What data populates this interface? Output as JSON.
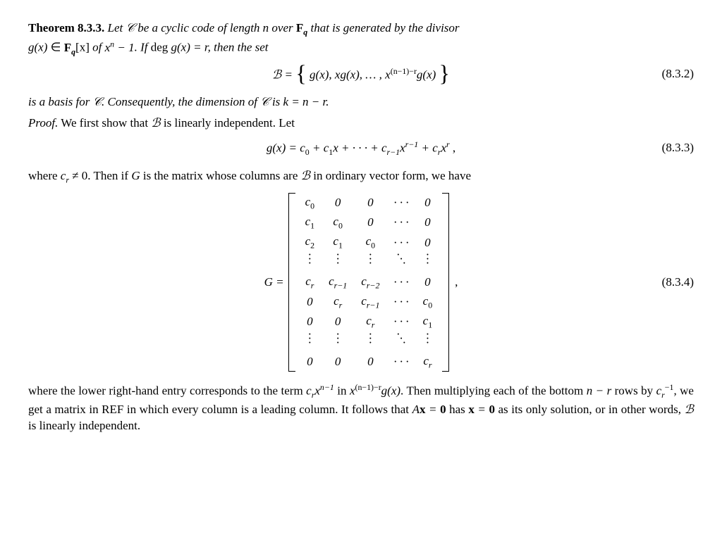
{
  "theorem": {
    "label": "Theorem 8.3.3.",
    "text_1a": "Let ",
    "C": "𝒞",
    "text_1b": " be a cyclic code of length ",
    "n": "n",
    "text_1c": " over ",
    "Fq": "F",
    "q": "q",
    "text_1d": " that is generated by the divisor ",
    "gx": "g(x)",
    "text_2a": " ∈ ",
    "Fqx": "F",
    "text_2b": "[x]",
    "text_2c": " of ",
    "xn1": "xⁿ − 1",
    "text_2d": ".  If ",
    "deg": "deg ",
    "text_2e": " = r,  then the set"
  },
  "eq1": {
    "lhs": "ℬ = ",
    "set_open": "{",
    "t1": "g(x), xg(x), … , x",
    "exp": "(n−1)−r",
    "t2": "g(x)",
    "set_close": "}",
    "num": "(8.3.2)"
  },
  "line_basis": {
    "a": "is a basis for ",
    "C": "𝒞",
    "b": ".  Consequently, the dimension of ",
    "c": " is ",
    "k_eq": "k = n − r",
    "d": "."
  },
  "proof": {
    "label": "Proof.",
    "a": "We first show that ",
    "B": "ℬ",
    "b": " is linearly independent.  Let"
  },
  "eq2": {
    "body1": "g(x) = c",
    "s0": "0",
    "p1": " + c",
    "s1": "1",
    "p1b": "x + · · · + c",
    "srm1": "r−1",
    "p2": "x",
    "erm1": "r−1",
    "p3": " + c",
    "sr": "r",
    "p4": "x",
    "er": "r",
    "p5": " ,",
    "num": "(8.3.3)"
  },
  "line_where": {
    "a": "where ",
    "cr": "c",
    "r": "r",
    "neq": " ≠ 0.  Then if ",
    "G": "G",
    "b": " is the matrix whose columns are ",
    "B": "ℬ",
    "c": " in ordinary vector form, we have"
  },
  "eq3": {
    "lhs": "G = ",
    "num": "(8.3.4)",
    "comma": ",",
    "rows": [
      [
        "c<sub class='subn'>0</sub>",
        "0",
        "0",
        "· · ·",
        "0"
      ],
      [
        "c<sub class='subn'>1</sub>",
        "c<sub class='subn'>0</sub>",
        "0",
        "· · ·",
        "0"
      ],
      [
        "c<sub class='subn'>2</sub>",
        "c<sub class='subn'>1</sub>",
        "c<sub class='subn'>0</sub>",
        "· · ·",
        "0"
      ],
      [
        "⋮",
        "⋮",
        "⋮",
        "⋱",
        "⋮"
      ],
      [
        "c<sub class='sub'>r</sub>",
        "c<sub class='sub'>r−1</sub>",
        "c<sub class='sub'>r−2</sub>",
        "· · ·",
        "0"
      ],
      [
        "0",
        "c<sub class='sub'>r</sub>",
        "c<sub class='sub'>r−1</sub>",
        "· · ·",
        "c<sub class='subn'>0</sub>"
      ],
      [
        "0",
        "0",
        "c<sub class='sub'>r</sub>",
        "· · ·",
        "c<sub class='subn'>1</sub>"
      ],
      [
        "⋮",
        "⋮",
        "⋮",
        "⋱",
        "⋮"
      ],
      [
        "0",
        "0",
        "0",
        "· · ·",
        "c<sub class='sub'>r</sub>"
      ]
    ]
  },
  "final": {
    "a": "where the lower right-hand entry corresponds to the term ",
    "crxn1": "c",
    "r": "r",
    "x": "x",
    "nm1": "n−1",
    "b": " in ",
    "xexp": "x",
    "exp2": "(n−1)−r",
    "gx": "g(x)",
    "c": ".  Then multiplying each of the bottom ",
    "nmr": "n − r",
    "d": " rows by ",
    "cr": "c",
    "inv": "−1",
    "e": ", we get a matrix in REF in which every column is a leading column.  It follows that ",
    "Ax": "Ax = 0",
    "f": " has ",
    "x0": "x = 0",
    "g": " as its only solution, or in other words, ",
    "B": "ℬ",
    "h": " is linearly independent."
  }
}
